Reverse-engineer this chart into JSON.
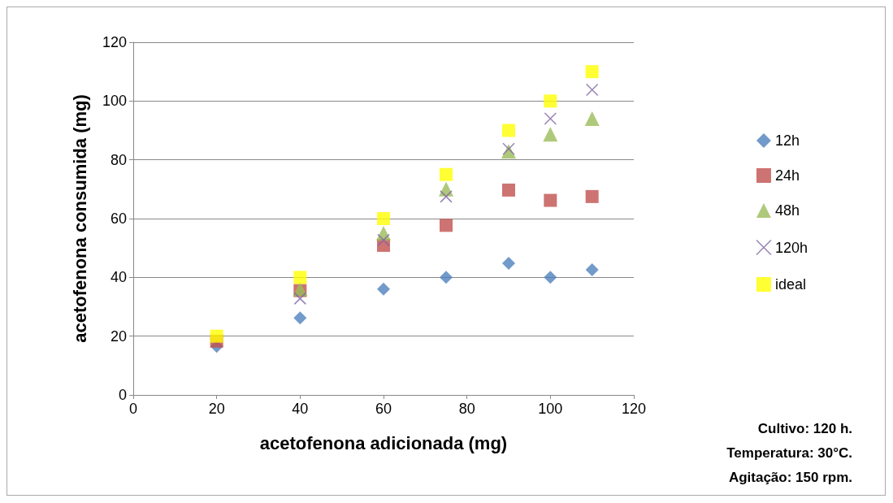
{
  "chart_data": {
    "type": "scatter",
    "xlabel": "acetofenona adicionada (mg)",
    "ylabel": "acetofenona consumida (mg)",
    "x": [
      20,
      40,
      60,
      75,
      90,
      100,
      110
    ],
    "series": [
      {
        "name": "12h",
        "color": "#4f81bd",
        "marker": "diamond",
        "values": [
          16.5,
          26.2,
          36,
          40,
          44.8,
          40,
          42.6
        ]
      },
      {
        "name": "24h",
        "color": "#c0504d",
        "marker": "square",
        "values": [
          18.3,
          35.5,
          50.9,
          57.7,
          69.7,
          66.2,
          67.5
        ]
      },
      {
        "name": "48h",
        "color": "#9bbb59",
        "marker": "triangle",
        "values": [
          null,
          36,
          55,
          70,
          82.9,
          88.7,
          94
        ]
      },
      {
        "name": "120h",
        "color": "#8064a2",
        "marker": "cross",
        "values": [
          null,
          32.8,
          52.7,
          67.5,
          83.7,
          94,
          103.8
        ]
      },
      {
        "name": "ideal",
        "color": "#ffff00",
        "marker": "square",
        "values": [
          20,
          40,
          60,
          75,
          90,
          100,
          110
        ]
      }
    ],
    "xlim": [
      0,
      120
    ],
    "xticks": [
      0,
      20,
      40,
      60,
      80,
      100,
      120
    ],
    "ylim": [
      0,
      120
    ],
    "yticks": [
      0,
      20,
      40,
      60,
      80,
      100,
      120
    ],
    "grid": "y",
    "legend": "right",
    "annotations": [
      "Cultivo: 120 h.",
      "Temperatura: 30°C.",
      "Agitação: 150 rpm."
    ]
  }
}
